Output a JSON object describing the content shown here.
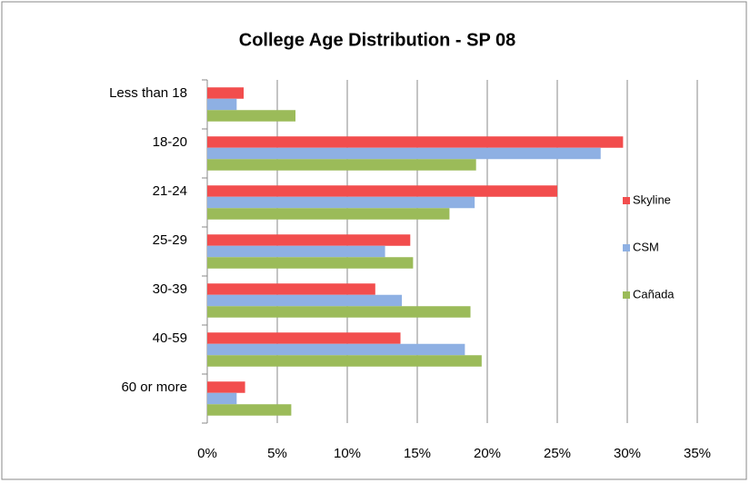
{
  "chart_data": {
    "type": "hbar",
    "title": "College Age Distribution - SP 08",
    "categories": [
      "Less than 18",
      "18-20",
      "21-24",
      "25-29",
      "30-39",
      "40-59",
      "60 or more"
    ],
    "series": [
      {
        "name": "Skyline",
        "color": "#f24d4d",
        "values": [
          2.6,
          29.7,
          25.0,
          14.5,
          12.0,
          13.8,
          2.7
        ]
      },
      {
        "name": "CSM",
        "color": "#8eb0e3",
        "values": [
          2.1,
          28.1,
          19.1,
          12.7,
          13.9,
          18.4,
          2.1
        ]
      },
      {
        "name": "Cañada",
        "color": "#9bbb59",
        "values": [
          6.3,
          19.2,
          17.3,
          14.7,
          18.8,
          19.6,
          6.0
        ]
      }
    ],
    "xlim": [
      0,
      35
    ],
    "xticks": [
      {
        "value": 0,
        "label": "0%"
      },
      {
        "value": 5,
        "label": "5%"
      },
      {
        "value": 10,
        "label": "10%"
      },
      {
        "value": 15,
        "label": "15%"
      },
      {
        "value": 20,
        "label": "20%"
      },
      {
        "value": 25,
        "label": "25%"
      },
      {
        "value": 30,
        "label": "30%"
      },
      {
        "value": 35,
        "label": "35%"
      }
    ],
    "grid": true,
    "legend": "right"
  }
}
